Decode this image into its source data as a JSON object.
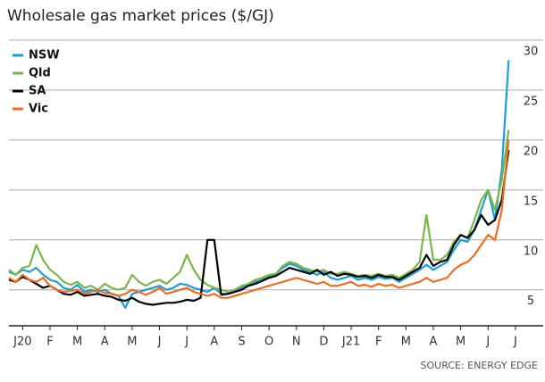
{
  "chart_data": {
    "type": "line",
    "title": "Wholesale gas market prices ($/GJ)",
    "source": "SOURCE: ENERGY EDGE",
    "x": [
      0,
      0.25,
      0.5,
      0.75,
      1,
      1.25,
      1.5,
      1.75,
      2,
      2.25,
      2.5,
      2.75,
      3,
      3.25,
      3.5,
      3.75,
      4,
      4.25,
      4.5,
      4.75,
      5,
      5.25,
      5.5,
      5.75,
      6,
      6.25,
      6.5,
      6.75,
      7,
      7.25,
      7.5,
      7.75,
      8,
      8.25,
      8.5,
      8.75,
      9,
      9.25,
      9.5,
      9.75,
      10,
      10.25,
      10.5,
      10.75,
      11,
      11.25,
      11.5,
      11.75,
      12,
      12.25,
      12.5,
      12.75,
      13,
      13.25,
      13.5,
      13.75,
      14,
      14.25,
      14.5,
      14.75,
      15,
      15.25,
      15.5,
      15.75,
      16,
      16.25,
      16.5,
      16.75,
      17,
      17.25,
      17.5,
      17.75,
      18,
      18.25
    ],
    "xlim": [
      0,
      18.6
    ],
    "xticks": [
      {
        "value": 0.5,
        "label": "J20"
      },
      {
        "value": 1.5,
        "label": "F"
      },
      {
        "value": 2.5,
        "label": "M"
      },
      {
        "value": 3.5,
        "label": "A"
      },
      {
        "value": 4.5,
        "label": "M"
      },
      {
        "value": 5.5,
        "label": "J"
      },
      {
        "value": 6.5,
        "label": "J"
      },
      {
        "value": 7.5,
        "label": "A"
      },
      {
        "value": 8.5,
        "label": "S"
      },
      {
        "value": 9.5,
        "label": "O"
      },
      {
        "value": 10.5,
        "label": "N"
      },
      {
        "value": 11.5,
        "label": "D"
      },
      {
        "value": 12.5,
        "label": "J21"
      },
      {
        "value": 13.5,
        "label": "F"
      },
      {
        "value": 14.5,
        "label": "M"
      },
      {
        "value": 15.5,
        "label": "A"
      },
      {
        "value": 16.5,
        "label": "M"
      },
      {
        "value": 17.5,
        "label": "J"
      },
      {
        "value": 18.5,
        "label": "J"
      }
    ],
    "ylim": [
      1.4,
      30
    ],
    "yticks": [
      5,
      10,
      15,
      20,
      25,
      30
    ],
    "y_axis_side": "right",
    "grid": true,
    "legend": "top-left",
    "series": [
      {
        "name": "NSW",
        "color": "#1a9fd9",
        "values": [
          6.8,
          6.5,
          7.0,
          6.8,
          7.2,
          6.5,
          6.0,
          5.8,
          5.2,
          5.0,
          5.5,
          4.8,
          5.0,
          4.8,
          5.0,
          4.6,
          4.4,
          3.2,
          4.6,
          4.8,
          5.0,
          5.2,
          5.4,
          5.0,
          5.2,
          5.6,
          5.5,
          5.2,
          5.0,
          4.8,
          5.2,
          4.6,
          4.6,
          4.8,
          5.2,
          5.5,
          5.8,
          6.0,
          6.4,
          6.6,
          7.2,
          7.6,
          7.4,
          7.0,
          6.8,
          6.5,
          6.8,
          6.2,
          6.0,
          6.2,
          6.4,
          6.0,
          6.2,
          6.0,
          6.3,
          6.1,
          6.2,
          5.8,
          6.2,
          6.6,
          7.0,
          7.5,
          7.0,
          7.4,
          7.8,
          9.0,
          10.0,
          9.8,
          11.0,
          13.0,
          15.0,
          12.0,
          17.0,
          28.0
        ]
      },
      {
        "name": "Qld",
        "color": "#7ab648",
        "values": [
          7.0,
          6.5,
          7.2,
          7.4,
          9.5,
          8.0,
          7.0,
          6.5,
          5.8,
          5.5,
          5.8,
          5.2,
          5.4,
          5.0,
          5.6,
          5.2,
          5.0,
          5.2,
          6.5,
          5.8,
          5.4,
          5.8,
          6.0,
          5.6,
          6.2,
          6.8,
          8.5,
          7.0,
          6.0,
          5.5,
          5.2,
          5.0,
          4.8,
          5.0,
          5.4,
          5.6,
          6.0,
          6.2,
          6.5,
          6.6,
          7.4,
          7.8,
          7.6,
          7.2,
          7.0,
          6.8,
          7.0,
          6.6,
          6.6,
          6.8,
          6.6,
          6.4,
          6.5,
          6.4,
          6.6,
          6.4,
          6.5,
          6.2,
          6.6,
          7.0,
          7.8,
          12.5,
          8.0,
          8.0,
          8.5,
          9.8,
          10.5,
          10.2,
          12.0,
          14.0,
          15.0,
          13.0,
          16.0,
          21.0
        ]
      },
      {
        "name": "SA",
        "color": "#000000",
        "values": [
          6.0,
          5.8,
          6.3,
          6.0,
          5.6,
          5.2,
          5.4,
          5.0,
          4.6,
          4.5,
          4.8,
          4.4,
          4.5,
          4.6,
          4.4,
          4.3,
          4.0,
          3.9,
          4.2,
          3.8,
          3.6,
          3.5,
          3.6,
          3.7,
          3.7,
          3.8,
          4.0,
          3.9,
          4.2,
          10.0,
          10.0,
          4.5,
          4.6,
          4.8,
          5.0,
          5.4,
          5.6,
          5.9,
          6.2,
          6.4,
          6.8,
          7.2,
          7.0,
          6.8,
          6.6,
          7.0,
          6.5,
          6.8,
          6.4,
          6.6,
          6.5,
          6.3,
          6.4,
          6.2,
          6.5,
          6.3,
          6.3,
          6.0,
          6.4,
          6.8,
          7.2,
          8.5,
          7.4,
          7.8,
          8.0,
          9.5,
          10.5,
          10.2,
          11.0,
          12.5,
          11.5,
          12.0,
          14.0,
          19.0
        ]
      },
      {
        "name": "Vic",
        "color": "#f26b21",
        "values": [
          6.2,
          5.8,
          6.5,
          6.0,
          5.8,
          6.2,
          5.4,
          5.0,
          4.8,
          4.9,
          5.0,
          4.6,
          4.8,
          5.0,
          4.7,
          4.6,
          4.4,
          4.6,
          5.0,
          4.8,
          4.5,
          4.8,
          5.2,
          4.6,
          4.8,
          5.0,
          5.2,
          4.8,
          4.6,
          4.4,
          4.6,
          4.2,
          4.2,
          4.4,
          4.6,
          4.8,
          5.0,
          5.2,
          5.4,
          5.6,
          5.8,
          6.0,
          6.2,
          6.0,
          5.8,
          5.6,
          5.8,
          5.4,
          5.4,
          5.6,
          5.8,
          5.4,
          5.5,
          5.3,
          5.6,
          5.4,
          5.5,
          5.2,
          5.4,
          5.6,
          5.8,
          6.2,
          5.8,
          6.0,
          6.2,
          7.0,
          7.5,
          7.8,
          8.5,
          9.5,
          10.5,
          10.0,
          13.0,
          20.0
        ]
      }
    ]
  }
}
